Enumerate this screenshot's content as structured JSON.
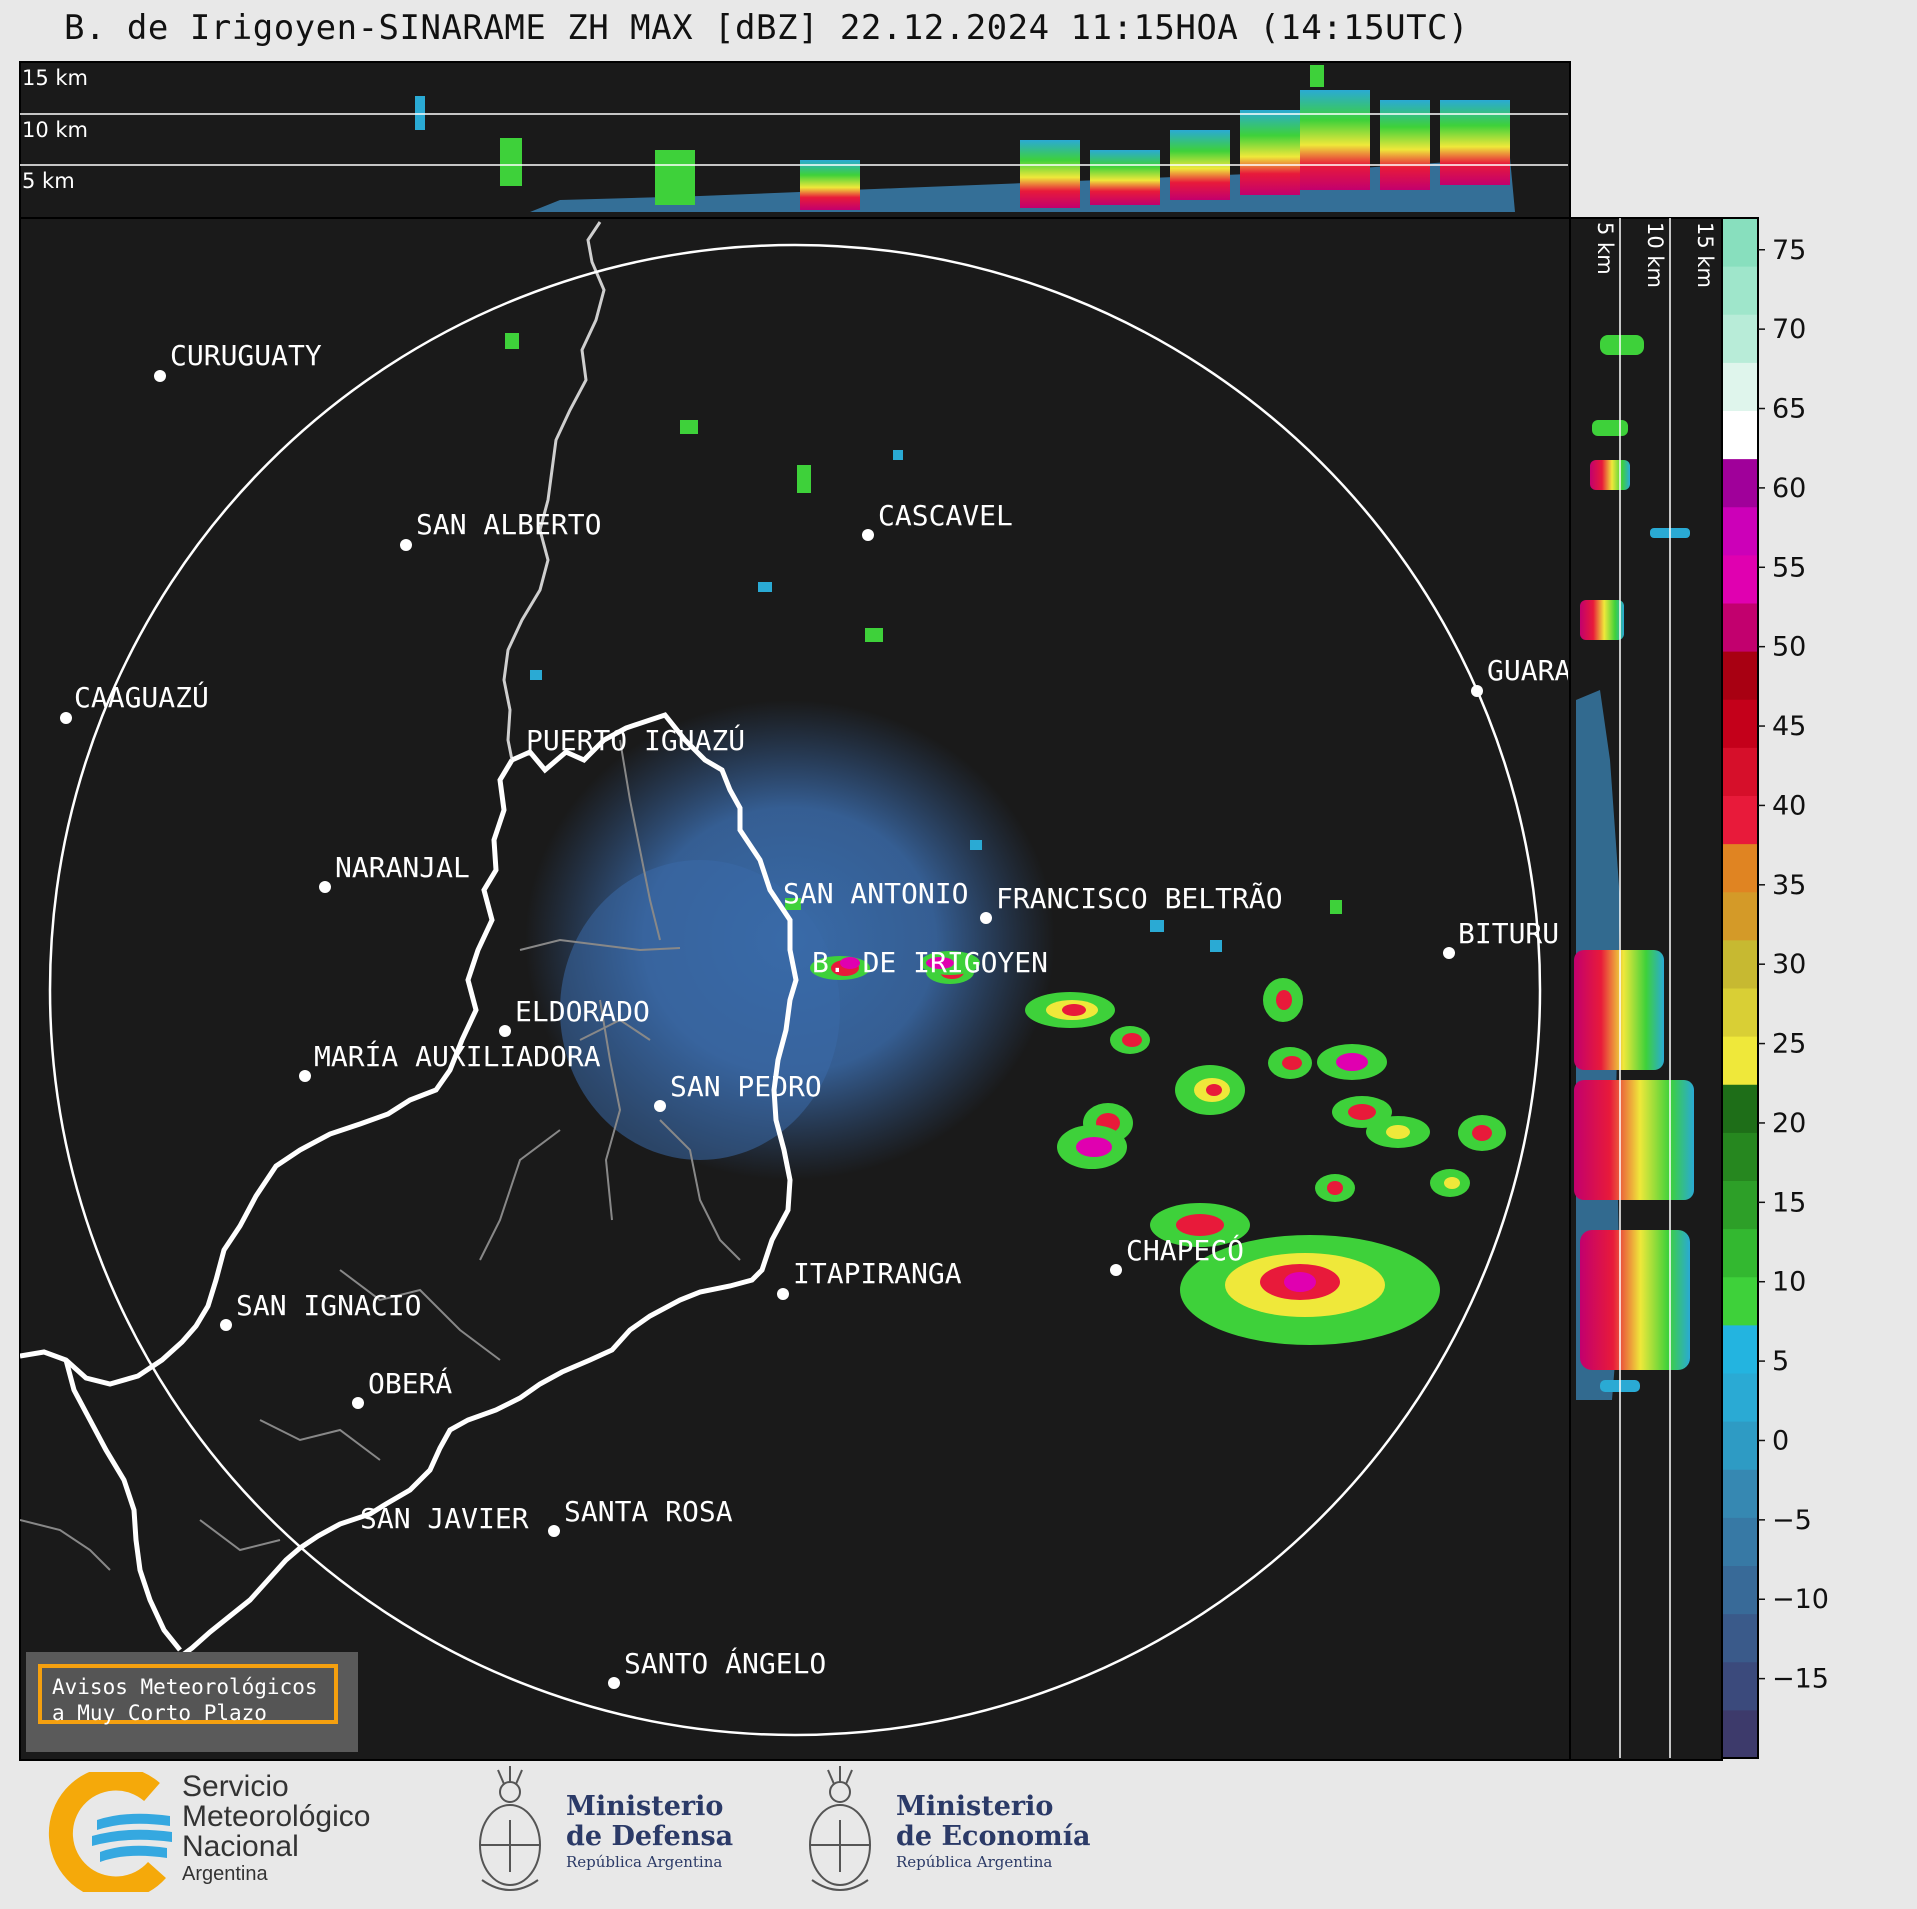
{
  "title": "B. de Irigoyen-SINARAME ZH MAX [dBZ] 22.12.2024 11:15HOA (14:15UTC)",
  "top_panel": {
    "height_labels": [
      "15 km",
      "10 km",
      "5 km"
    ]
  },
  "side_panel": {
    "height_labels": [
      "5 km",
      "10 km",
      "15 km"
    ]
  },
  "cities": [
    {
      "name": "CURUGUATY"
    },
    {
      "name": "SAN ALBERTO"
    },
    {
      "name": "CASCAVEL"
    },
    {
      "name": "CAAGUAZÚ"
    },
    {
      "name": "GUARA"
    },
    {
      "name": "PUERTO IGUAZÚ"
    },
    {
      "name": "NARANJAL"
    },
    {
      "name": "SAN ANTONIO"
    },
    {
      "name": "FRANCISCO BELTRÃO"
    },
    {
      "name": "BITURU"
    },
    {
      "name": "B. DE IRIGOYEN"
    },
    {
      "name": "ELDORADO"
    },
    {
      "name": "MARÍA AUXILIADORA"
    },
    {
      "name": "SAN PEDRO"
    },
    {
      "name": "CHAPECÓ"
    },
    {
      "name": "ITAPIRANGA"
    },
    {
      "name": "SAN IGNACIO"
    },
    {
      "name": "OBERÁ"
    },
    {
      "name": "SAN JAVIER"
    },
    {
      "name": "SANTA ROSA"
    },
    {
      "name": "SANTO ÁNGELO"
    }
  ],
  "colorbar": {
    "unit": "dBZ",
    "ticks": [
      "75",
      "70",
      "65",
      "60",
      "55",
      "50",
      "45",
      "40",
      "35",
      "30",
      "25",
      "20",
      "15",
      "10",
      "5",
      "0",
      "−5",
      "−10",
      "−15"
    ],
    "range": [
      -20,
      77
    ],
    "colors": [
      "#3d3a6b",
      "#3b4a7c",
      "#3a5a8a",
      "#386a98",
      "#3779a5",
      "#3688b2",
      "#2e9bc4",
      "#2aaad4",
      "#23b4e0",
      "#3ed13a",
      "#33b830",
      "#2d9f28",
      "#26871f",
      "#1e6e18",
      "#efe83a",
      "#d9cf35",
      "#c7b931",
      "#d49a28",
      "#e08422",
      "#e81a3a",
      "#d60f2a",
      "#c4001a",
      "#a80012",
      "#c2006e",
      "#e000b0",
      "#cc00b8",
      "#a0009a",
      "#ffffff",
      "#dff5ec",
      "#b8ecd8",
      "#9fe6cb",
      "#88dfbe"
    ]
  },
  "warning": {
    "line1": "Avisos Meteorológicos",
    "line2": "a Muy Corto Plazo"
  },
  "logos": {
    "smn": [
      "Servicio",
      "Meteorológico",
      "Nacional",
      "Argentina"
    ],
    "defensa": [
      "Ministerio",
      "de Defensa",
      "República Argentina"
    ],
    "economia": [
      "Ministerio",
      "de Economía",
      "República Argentina"
    ]
  }
}
